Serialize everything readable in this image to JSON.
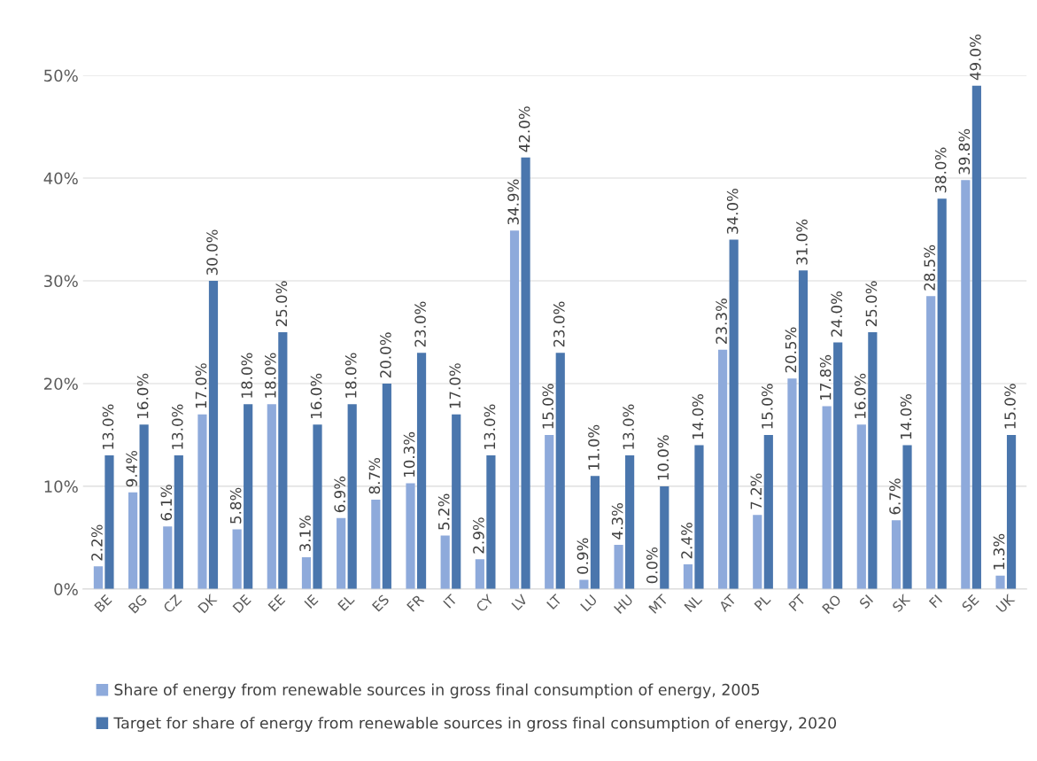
{
  "chart_data": {
    "type": "bar",
    "categories": [
      "BE",
      "BG",
      "CZ",
      "DK",
      "DE",
      "EE",
      "IE",
      "EL",
      "ES",
      "FR",
      "IT",
      "CY",
      "LV",
      "LT",
      "LU",
      "HU",
      "MT",
      "NL",
      "AT",
      "PL",
      "PT",
      "RO",
      "SI",
      "SK",
      "FI",
      "SE",
      "UK"
    ],
    "series": [
      {
        "name": "Share of energy from renewable sources in gross final consumption of energy, 2005",
        "color": "#8eaadb",
        "values": [
          2.2,
          9.4,
          6.1,
          17.0,
          5.8,
          18.0,
          3.1,
          6.9,
          8.7,
          10.3,
          5.2,
          2.9,
          34.9,
          15.0,
          0.9,
          4.3,
          0.0,
          2.4,
          23.3,
          7.2,
          20.5,
          17.8,
          16.0,
          6.7,
          28.5,
          39.8,
          1.3
        ],
        "value_labels": [
          "2.2%",
          "9.4%",
          "6.1%",
          "17.0%",
          "5.8%",
          "18.0%",
          "3.1%",
          "6.9%",
          "8.7%",
          "10.3%",
          "5.2%",
          "2.9%",
          "34.9%",
          "15.0%",
          "0.9%",
          "4.3%",
          "0.0%",
          "2.4%",
          "23.3%",
          "7.2%",
          "20.5%",
          "17.8%",
          "16.0%",
          "6.7%",
          "28.5%",
          "39.8%",
          "1.3%"
        ]
      },
      {
        "name": "Target for share of energy from renewable sources in gross final consumption of energy, 2020",
        "color": "#4a76ad",
        "values": [
          13,
          16,
          13,
          30,
          18,
          25,
          16,
          18,
          20,
          23,
          17,
          13,
          42,
          23,
          11,
          13,
          10,
          14,
          34,
          15,
          31,
          24,
          25,
          14,
          38,
          49,
          15
        ],
        "value_labels": [
          "13.0%",
          "16.0%",
          "13.0%",
          "30.0%",
          "18.0%",
          "25.0%",
          "16.0%",
          "18.0%",
          "20.0%",
          "23.0%",
          "17.0%",
          "13.0%",
          "42.0%",
          "23.0%",
          "11.0%",
          "13.0%",
          "10.0%",
          "14.0%",
          "34.0%",
          "15.0%",
          "31.0%",
          "24.0%",
          "25.0%",
          "14.0%",
          "38.0%",
          "49.0%",
          "15.0%"
        ]
      }
    ],
    "ylim": [
      0,
      50
    ],
    "yticks": [
      {
        "value": 0,
        "label": "0%"
      },
      {
        "value": 10,
        "label": "10%"
      },
      {
        "value": 20,
        "label": "20%"
      },
      {
        "value": 30,
        "label": "30%"
      },
      {
        "value": 40,
        "label": "40%"
      },
      {
        "value": 50,
        "label": "50%"
      }
    ],
    "grid": "y",
    "legend": "bottom"
  }
}
